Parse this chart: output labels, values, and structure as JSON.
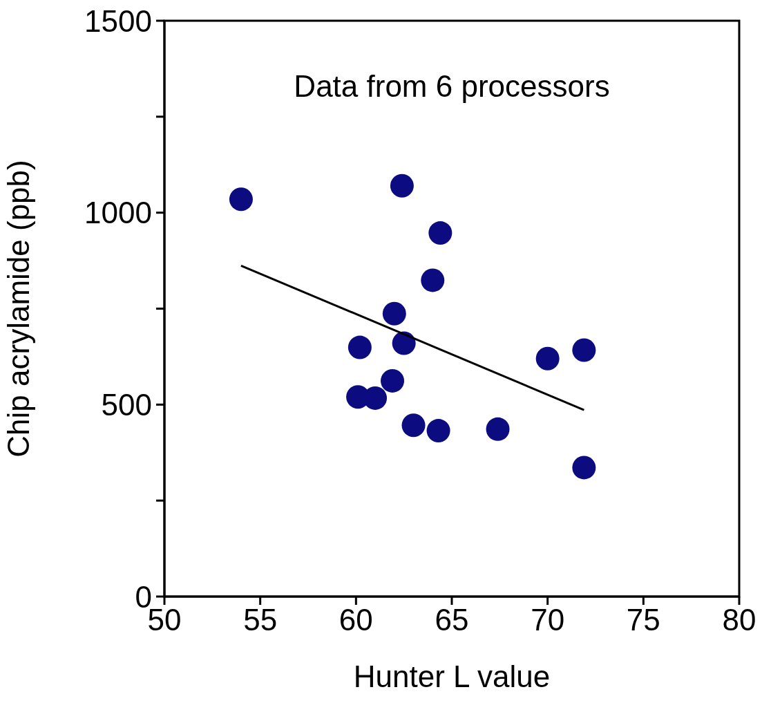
{
  "chart_data": {
    "type": "scatter",
    "xlabel": "Hunter L value",
    "ylabel": "Chip acrylamide (ppb)",
    "annotations": [
      "Data from 6 processors"
    ],
    "xlim": [
      50,
      80
    ],
    "xticks": [
      50,
      55,
      60,
      65,
      70,
      75,
      80
    ],
    "ylim": [
      0,
      1500
    ],
    "yticks": [
      0,
      {
        "value": 250,
        "label": null
      },
      500,
      {
        "value": 750,
        "label": null
      },
      1000,
      {
        "value": 1250,
        "label": null
      },
      1500
    ],
    "series": [
      {
        "marker": "circle",
        "color": "#0c0c80",
        "x": [
          54,
          62.4,
          64.4,
          64,
          62,
          60.2,
          62.5,
          60.1,
          61,
          61.9,
          63,
          64.3,
          67.4,
          70,
          71.9,
          71.9
        ],
        "values": [
          1035,
          1070,
          947,
          824,
          737,
          649,
          660,
          520,
          517,
          562,
          446,
          432,
          436,
          620,
          642,
          336
        ]
      },
      {
        "type": "line",
        "color": "#000000",
        "x": [
          54,
          71.9
        ],
        "values": [
          862,
          486
        ]
      }
    ]
  }
}
